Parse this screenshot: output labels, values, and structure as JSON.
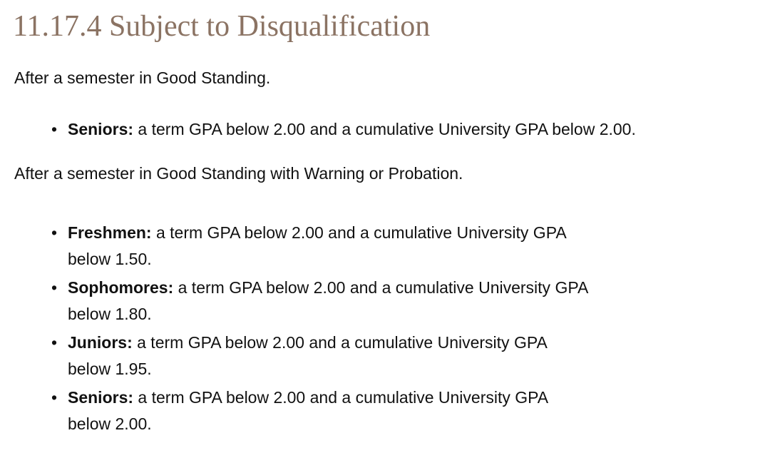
{
  "document": {
    "heading": "11.17.4 Subject to Disqualification",
    "intro_good_standing": "After a semester in Good Standing.",
    "intro_warning_probation": "After a semester in Good Standing with Warning or Probation.",
    "good_standing_rules": [
      {
        "class_level": "Seniors:",
        "rule": "a term GPA below 2.00 and a cumulative University GPA below 2.00."
      }
    ],
    "warning_probation_rules": [
      {
        "class_level": "Freshmen:",
        "rule_line1": "a term GPA below 2.00 and a cumulative University GPA",
        "rule_line2": "below 1.50."
      },
      {
        "class_level": "Sophomores:",
        "rule_line1": "a term GPA below 2.00 and a cumulative University GPA",
        "rule_line2": "below 1.80."
      },
      {
        "class_level": "Juniors:",
        "rule_line1": "a term GPA below 2.00 and a cumulative University GPA",
        "rule_line2": "below 1.95."
      },
      {
        "class_level": "Seniors:",
        "rule_line1": "a term GPA below 2.00 and a cumulative University GPA",
        "rule_line2": "below 2.00."
      }
    ],
    "colors": {
      "heading": "#8b7363",
      "body_text": "#111111",
      "background": "#ffffff"
    }
  }
}
